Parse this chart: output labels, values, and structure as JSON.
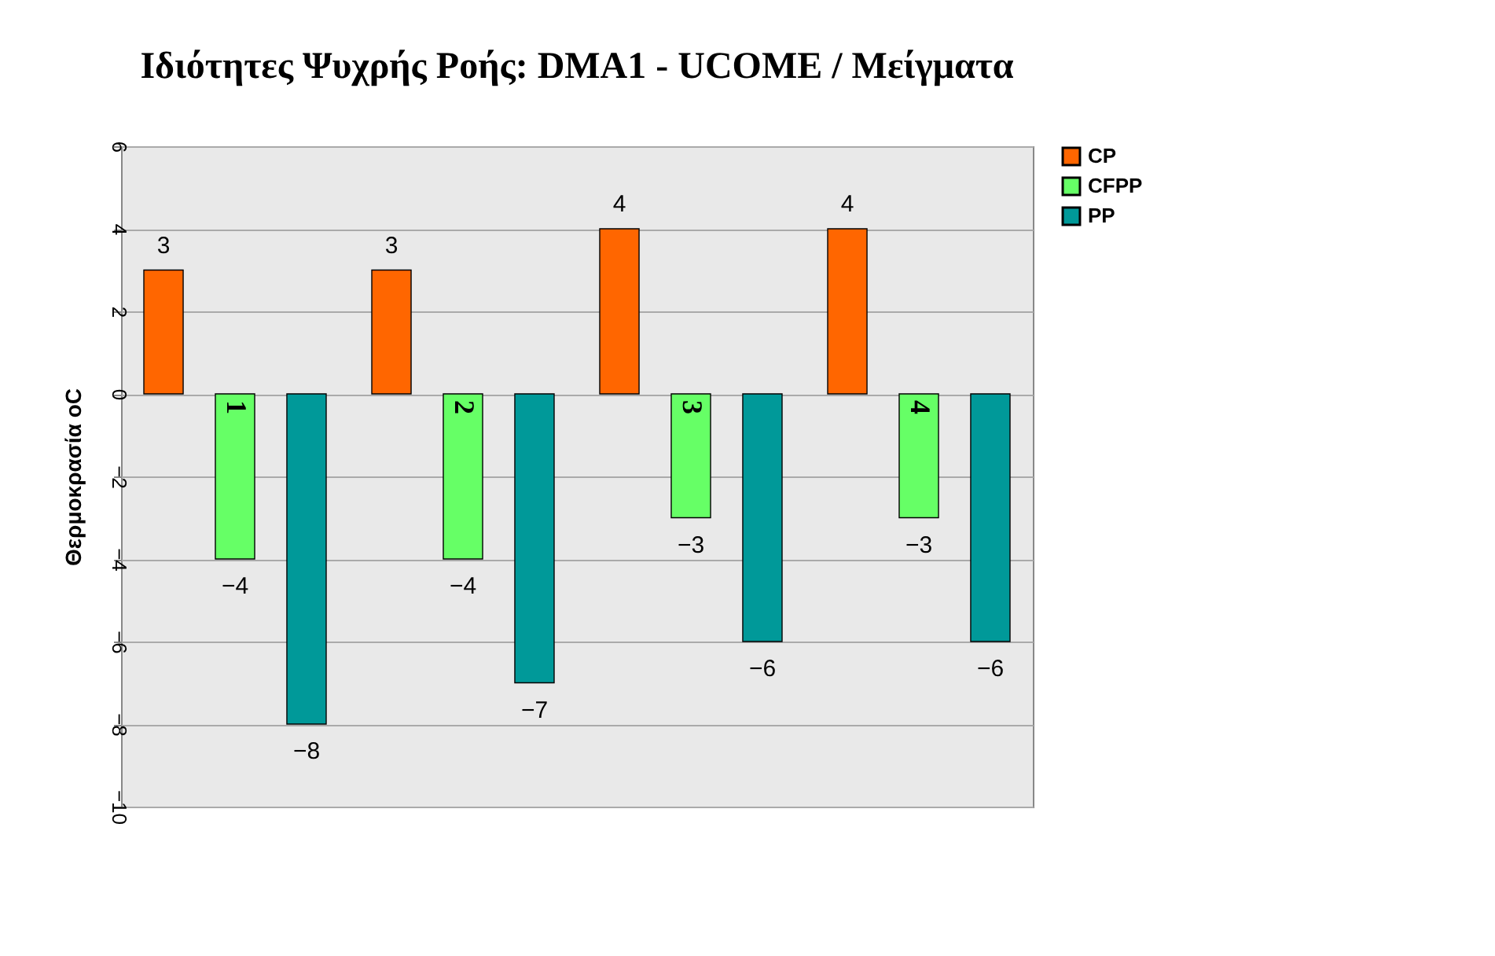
{
  "chart_data": {
    "type": "bar",
    "title": "Ιδιότητες Ψυχρής Ροής: DMA1 - UCOME / Μείγματα",
    "ylabel": "Θερμοκρασία oC",
    "categories": [
      "1",
      "2",
      "3",
      "4"
    ],
    "series": [
      {
        "name": "CP",
        "color": "#ff6600",
        "values": [
          3,
          3,
          4,
          4
        ]
      },
      {
        "name": "CFPP",
        "color": "#66ff66",
        "values": [
          -4,
          -4,
          -3,
          -3
        ]
      },
      {
        "name": "PP",
        "color": "#009999",
        "values": [
          -8,
          -7,
          -6,
          -6
        ]
      }
    ],
    "ylim": [
      -10,
      6
    ],
    "yticks": [
      -10,
      -8,
      -6,
      -4,
      -2,
      0,
      2,
      4,
      6
    ],
    "grid": "y",
    "legend": "right",
    "data_labels": true
  }
}
